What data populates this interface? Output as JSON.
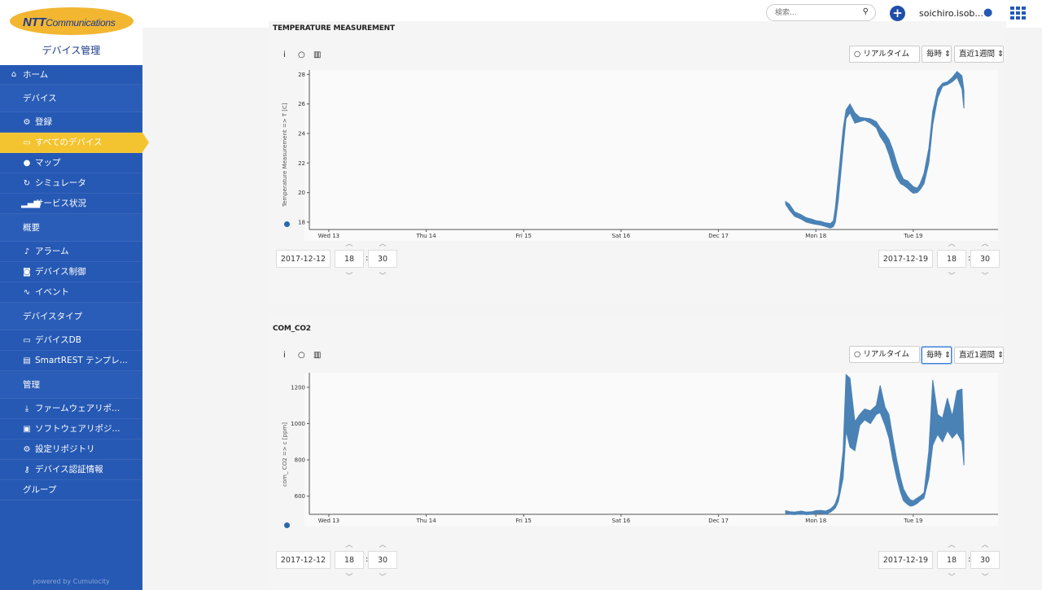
{
  "brand": {
    "logo_main": "NTT",
    "logo_sub": "Communications",
    "app_title": "デバイス管理",
    "powered": "powered by Cumulocity"
  },
  "header": {
    "search_placeholder": "検索...",
    "username": "soichiro.isob..."
  },
  "nav": [
    {
      "label": "ホーム",
      "icon": "home-icon",
      "glyph": "⌂",
      "kind": "top"
    },
    {
      "label": "デバイス",
      "kind": "section"
    },
    {
      "label": "登録",
      "icon": "cogs-icon",
      "glyph": "⚙",
      "kind": "item"
    },
    {
      "label": "すべてのデバイス",
      "icon": "hdd-icon",
      "glyph": "▭",
      "kind": "item",
      "active": true
    },
    {
      "label": "マップ",
      "icon": "map-marker-icon",
      "glyph": "●",
      "kind": "item"
    },
    {
      "label": "シミュレータ",
      "icon": "refresh-icon",
      "glyph": "↻",
      "kind": "item"
    },
    {
      "label": "サービス状況",
      "icon": "signal-icon",
      "glyph": "▂▄▆",
      "kind": "item"
    },
    {
      "label": "概要",
      "kind": "section"
    },
    {
      "label": "アラーム",
      "icon": "bell-icon",
      "glyph": "♪",
      "kind": "item"
    },
    {
      "label": "デバイス制御",
      "icon": "gamepad-icon",
      "glyph": "◙",
      "kind": "item"
    },
    {
      "label": "イベント",
      "icon": "rss-icon",
      "glyph": "∿",
      "kind": "item"
    },
    {
      "label": "デバイスタイプ",
      "kind": "section"
    },
    {
      "label": "デバイスDB",
      "icon": "hdd-icon",
      "glyph": "▭",
      "kind": "item"
    },
    {
      "label": "SmartREST テンプレ...",
      "icon": "file-code-icon",
      "glyph": "▤",
      "kind": "item"
    },
    {
      "label": "管理",
      "kind": "section"
    },
    {
      "label": "ファームウェアリポ...",
      "icon": "download-icon",
      "glyph": "⤓",
      "kind": "item"
    },
    {
      "label": "ソフトウェアリポジ...",
      "icon": "save-icon",
      "glyph": "▣",
      "kind": "item"
    },
    {
      "label": "設定リポジトリ",
      "icon": "cogs-icon",
      "glyph": "⚙",
      "kind": "item"
    },
    {
      "label": "デバイス認証情報",
      "icon": "key-icon",
      "glyph": "⚷",
      "kind": "item"
    },
    {
      "label": "グループ",
      "kind": "group"
    }
  ],
  "controls": {
    "realtime": "リアルタイム",
    "interval": "毎時",
    "range": "直近1週間"
  },
  "charts": [
    {
      "title": "TEMPERATURE MEASUREMENT",
      "from_date": "2017-12-12",
      "from_hour": "18",
      "from_min": "30",
      "to_date": "2017-12-19",
      "to_hour": "18",
      "to_min": "30"
    },
    {
      "title": "COM_CO2",
      "from_date": "2017-12-12",
      "from_hour": "18",
      "from_min": "30",
      "to_date": "2017-12-19",
      "to_hour": "18",
      "to_min": "30"
    }
  ],
  "chart_data": [
    {
      "type": "area",
      "title": "TEMPERATURE MEASUREMENT",
      "ylabel": "Temperature Measurement => T [C]",
      "x_tick_labels": [
        "Wed 13",
        "Thu 14",
        "Fri 15",
        "Sat 16",
        "Dec 17",
        "Mon 18",
        "Tue 19"
      ],
      "y_ticks": [
        18,
        20,
        22,
        24,
        26,
        28
      ],
      "ylim": [
        17.5,
        28.3
      ],
      "xlim": [
        0,
        7.07
      ],
      "band_color": "#4a82b6",
      "x": [
        4.89,
        4.93,
        4.98,
        5.05,
        5.1,
        5.16,
        5.2,
        5.25,
        5.3,
        5.35,
        5.38,
        5.4,
        5.43,
        5.48,
        5.51,
        5.55,
        5.6,
        5.65,
        5.7,
        5.76,
        5.82,
        5.86,
        5.91,
        5.95,
        5.99,
        6.03,
        6.07,
        6.1,
        6.14,
        6.17,
        6.2,
        6.24,
        6.27,
        6.31,
        6.36,
        6.4,
        6.45,
        6.5,
        6.55,
        6.6,
        6.65,
        6.7,
        6.72
      ],
      "upper": [
        19.4,
        19.2,
        18.7,
        18.5,
        18.3,
        18.2,
        18.1,
        18.05,
        17.95,
        17.9,
        18.1,
        19.0,
        21.0,
        24.3,
        25.6,
        26.0,
        25.4,
        25.1,
        25.05,
        25.0,
        24.8,
        24.4,
        24.0,
        23.6,
        22.9,
        22.0,
        21.3,
        20.9,
        20.8,
        20.6,
        20.4,
        20.3,
        20.6,
        21.3,
        23.0,
        25.5,
        27.0,
        27.4,
        27.5,
        27.8,
        28.2,
        27.9,
        26.9
      ],
      "lower": [
        19.2,
        18.8,
        18.4,
        18.2,
        18.0,
        17.9,
        17.85,
        17.8,
        17.7,
        17.6,
        17.7,
        18.0,
        19.5,
        23.0,
        25.0,
        25.4,
        24.7,
        24.8,
        24.9,
        24.7,
        24.4,
        23.8,
        23.3,
        22.6,
        21.7,
        21.0,
        20.6,
        20.5,
        20.3,
        20.1,
        19.95,
        20.0,
        20.2,
        20.6,
        22.0,
        24.6,
        26.4,
        27.2,
        27.3,
        27.5,
        27.8,
        27.0,
        25.7
      ]
    },
    {
      "type": "area",
      "title": "COM_CO2",
      "ylabel": "com_ CO2 => c [ppm]",
      "x_tick_labels": [
        "Wed 13",
        "Thu 14",
        "Fri 15",
        "Sat 16",
        "Dec 17",
        "Mon 18",
        "Tue 19"
      ],
      "y_ticks": [
        600,
        800,
        1000,
        1200
      ],
      "ylim": [
        500,
        1280
      ],
      "xlim": [
        0,
        7.07
      ],
      "band_color": "#4a82b6",
      "x": [
        4.89,
        4.93,
        4.98,
        5.05,
        5.1,
        5.16,
        5.2,
        5.25,
        5.3,
        5.35,
        5.38,
        5.4,
        5.43,
        5.48,
        5.51,
        5.55,
        5.6,
        5.65,
        5.7,
        5.76,
        5.82,
        5.86,
        5.91,
        5.95,
        5.99,
        6.03,
        6.07,
        6.1,
        6.14,
        6.17,
        6.2,
        6.24,
        6.27,
        6.31,
        6.36,
        6.4,
        6.45,
        6.5,
        6.55,
        6.6,
        6.65,
        6.7,
        6.72
      ],
      "upper": [
        520,
        515,
        512,
        518,
        512,
        515,
        520,
        522,
        518,
        530,
        545,
        560,
        610,
        850,
        1270,
        1250,
        1010,
        1050,
        1080,
        1070,
        1100,
        1210,
        1090,
        1050,
        920,
        800,
        700,
        640,
        600,
        580,
        575,
        590,
        600,
        620,
        850,
        1240,
        1050,
        1030,
        1140,
        1040,
        1180,
        1190,
        900
      ],
      "lower": [
        505,
        500,
        498,
        502,
        498,
        500,
        505,
        505,
        500,
        512,
        525,
        535,
        570,
        700,
        960,
        870,
        850,
        990,
        1020,
        1000,
        1050,
        1060,
        990,
        920,
        800,
        700,
        620,
        575,
        555,
        545,
        548,
        560,
        575,
        590,
        700,
        880,
        940,
        900,
        960,
        920,
        950,
        900,
        770
      ]
    }
  ]
}
